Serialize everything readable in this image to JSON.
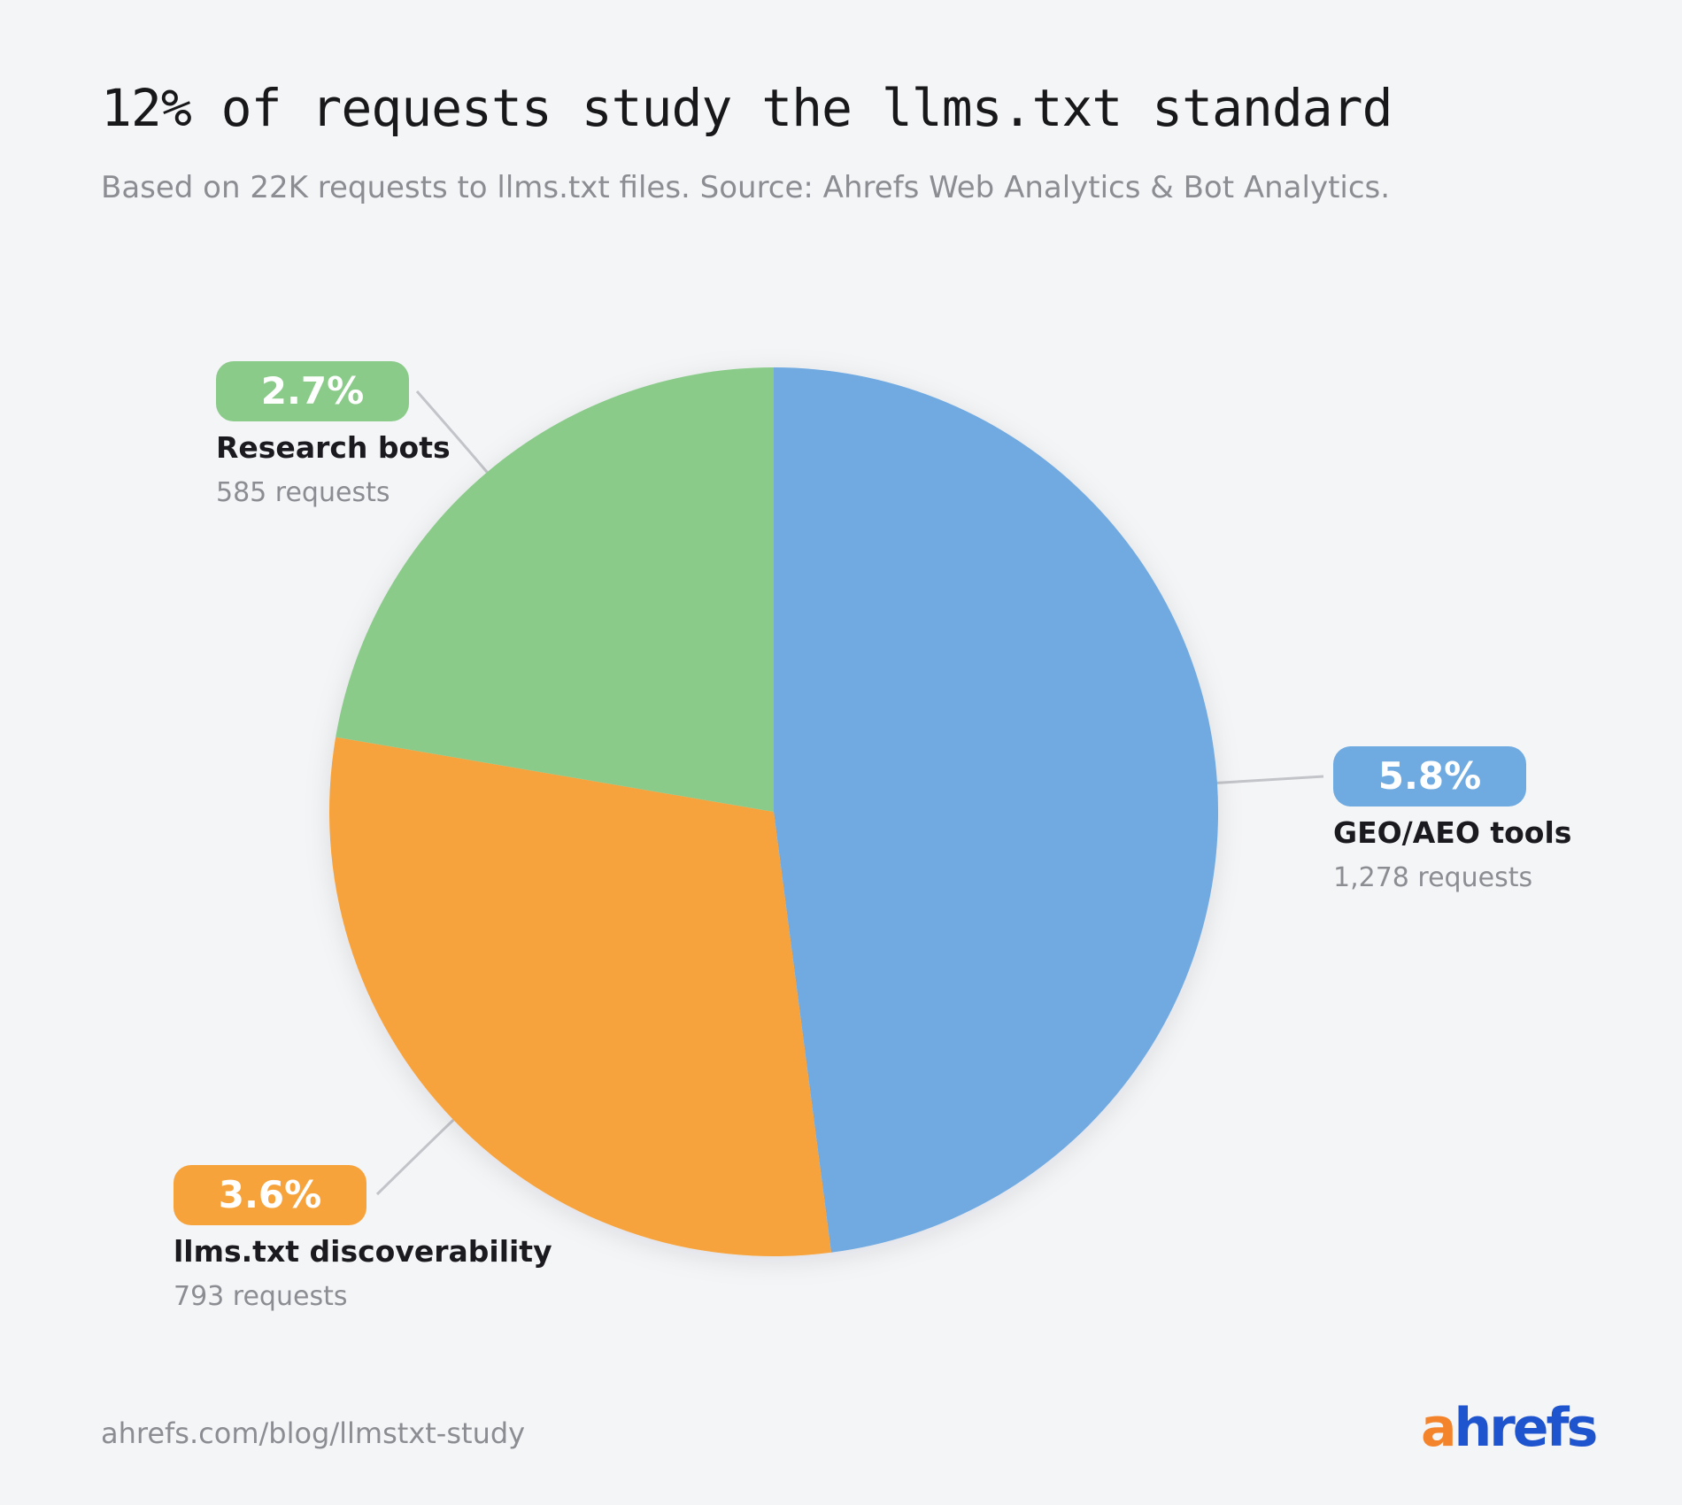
{
  "header": {
    "title": "12% of requests study the llms.txt standard",
    "subtitle": "Based on 22K requests to llms.txt files. Source: Ahrefs Web Analytics & Bot Analytics."
  },
  "chart_data": {
    "type": "pie",
    "title": "12% of requests study the llms.txt standard",
    "subtitle": "Based on 22K requests to llms.txt files. Source: Ahrefs Web Analytics & Bot Analytics.",
    "start_angle_deg": 0,
    "direction": "clockwise",
    "slices": [
      {
        "name": "GEO/AEO tools",
        "percent": 5.8,
        "percent_label": "5.8%",
        "requests": 1278,
        "requests_label": "1,278 requests",
        "color": "#6faae1"
      },
      {
        "name": "llms.txt discoverability",
        "percent": 3.6,
        "percent_label": "3.6%",
        "requests": 793,
        "requests_label": "793 requests",
        "color": "#f7a33c"
      },
      {
        "name": "Research bots",
        "percent": 2.7,
        "percent_label": "2.7%",
        "requests": 585,
        "requests_label": "585 requests",
        "color": "#8acb8a"
      }
    ]
  },
  "footer": {
    "url": "ahrefs.com/blog/llmstxt-study",
    "logo_a": "a",
    "logo_rest": "hrefs"
  }
}
